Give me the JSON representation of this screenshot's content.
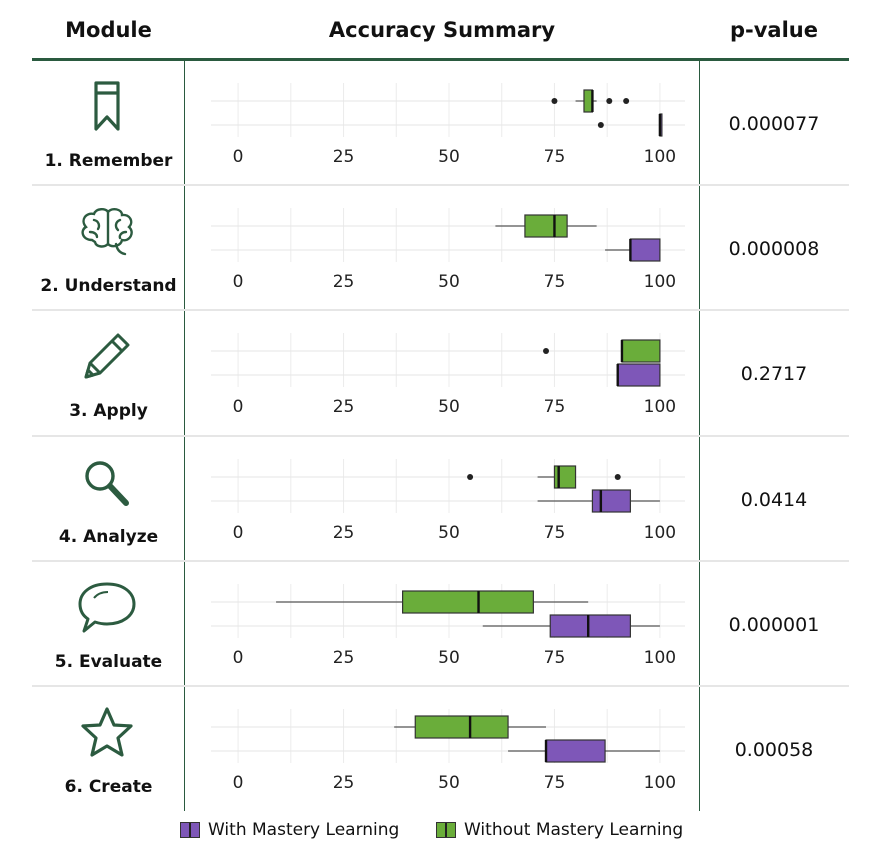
{
  "headers": {
    "module": "Module",
    "accuracy": "Accuracy Summary",
    "pvalue": "p-value"
  },
  "colors": {
    "with": "#7e57b8",
    "without": "#6aad3a",
    "rule": "#2a5a3f",
    "icon": "#2c5b40"
  },
  "legend": [
    {
      "label": "With Mastery Learning",
      "color": "#7e57b8"
    },
    {
      "label": "Without Mastery Learning",
      "color": "#6aad3a"
    }
  ],
  "chart_data": {
    "type": "box",
    "xlim": [
      -5,
      105
    ],
    "ticks": [
      "0",
      "25",
      "50",
      "75",
      "100"
    ],
    "tick_values": [
      0,
      25,
      50,
      75,
      100
    ],
    "series_names": [
      "Without Mastery Learning",
      "With Mastery Learning"
    ],
    "rows": [
      {
        "module": "1. Remember",
        "icon": "bookmark-icon",
        "pvalue": "0.000077",
        "without": {
          "min": 80,
          "q1": 82,
          "median": 84,
          "q3": 84,
          "max": 85,
          "outliers": [
            75,
            88,
            92
          ]
        },
        "with": {
          "min": 100,
          "q1": 100,
          "median": 100,
          "q3": 100,
          "max": 100,
          "outliers": [
            86
          ]
        }
      },
      {
        "module": "2. Understand",
        "icon": "brain-icon",
        "pvalue": "0.000008",
        "without": {
          "min": 61,
          "q1": 68,
          "median": 75,
          "q3": 78,
          "max": 85,
          "outliers": []
        },
        "with": {
          "min": 87,
          "q1": 93,
          "median": 93,
          "q3": 100,
          "max": 100,
          "outliers": []
        }
      },
      {
        "module": "3. Apply",
        "icon": "pencil-icon",
        "pvalue": "0.2717",
        "without": {
          "min": 91,
          "q1": 91,
          "median": 91,
          "q3": 100,
          "max": 100,
          "outliers": [
            73
          ]
        },
        "with": {
          "min": 90,
          "q1": 90,
          "median": 90,
          "q3": 100,
          "max": 100,
          "outliers": []
        }
      },
      {
        "module": "4. Analyze",
        "icon": "magnifier-icon",
        "pvalue": "0.0414",
        "without": {
          "min": 71,
          "q1": 75,
          "median": 76,
          "q3": 80,
          "max": 80,
          "outliers": [
            55,
            90
          ]
        },
        "with": {
          "min": 71,
          "q1": 84,
          "median": 86,
          "q3": 93,
          "max": 100,
          "outliers": []
        }
      },
      {
        "module": "5. Evaluate",
        "icon": "speech-bubble-icon",
        "pvalue": "0.000001",
        "without": {
          "min": 9,
          "q1": 39,
          "median": 57,
          "q3": 70,
          "max": 83,
          "outliers": []
        },
        "with": {
          "min": 58,
          "q1": 74,
          "median": 83,
          "q3": 93,
          "max": 100,
          "outliers": []
        }
      },
      {
        "module": "6. Create",
        "icon": "star-icon",
        "pvalue": "0.00058",
        "without": {
          "min": 37,
          "q1": 42,
          "median": 55,
          "q3": 64,
          "max": 73,
          "outliers": []
        },
        "with": {
          "min": 64,
          "q1": 73,
          "median": 73,
          "q3": 87,
          "max": 100,
          "outliers": []
        }
      }
    ]
  }
}
